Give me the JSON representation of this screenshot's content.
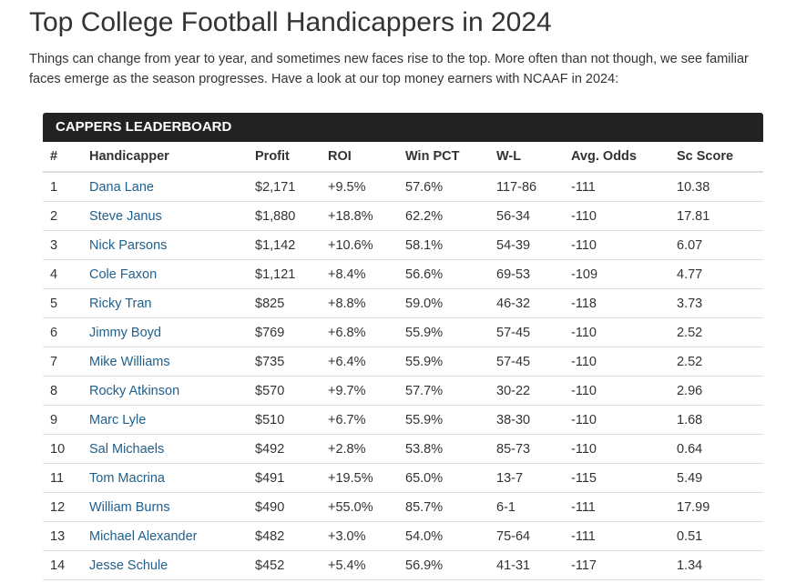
{
  "header": {
    "title": "Top College Football Handicappers in 2024",
    "intro": "Things can change from year to year, and sometimes new faces rise to the top. More often than not though, we see familiar faces emerge as the season progresses. Have a look at our top money earners with NCAAF in 2024:"
  },
  "table": {
    "title": "CAPPERS LEADERBOARD",
    "columns": [
      "#",
      "Handicapper",
      "Profit",
      "ROI",
      "Win PCT",
      "W-L",
      "Avg. Odds",
      "Sc Score"
    ],
    "rows": [
      [
        "1",
        "Dana Lane",
        "$2,171",
        "+9.5%",
        "57.6%",
        "117-86",
        "-111",
        "10.38"
      ],
      [
        "2",
        "Steve Janus",
        "$1,880",
        "+18.8%",
        "62.2%",
        "56-34",
        "-110",
        "17.81"
      ],
      [
        "3",
        "Nick Parsons",
        "$1,142",
        "+10.6%",
        "58.1%",
        "54-39",
        "-110",
        "6.07"
      ],
      [
        "4",
        "Cole Faxon",
        "$1,121",
        "+8.4%",
        "56.6%",
        "69-53",
        "-109",
        "4.77"
      ],
      [
        "5",
        "Ricky Tran",
        "$825",
        "+8.8%",
        "59.0%",
        "46-32",
        "-118",
        "3.73"
      ],
      [
        "6",
        "Jimmy Boyd",
        "$769",
        "+6.8%",
        "55.9%",
        "57-45",
        "-110",
        "2.52"
      ],
      [
        "7",
        "Mike Williams",
        "$735",
        "+6.4%",
        "55.9%",
        "57-45",
        "-110",
        "2.52"
      ],
      [
        "8",
        "Rocky Atkinson",
        "$570",
        "+9.7%",
        "57.7%",
        "30-22",
        "-110",
        "2.96"
      ],
      [
        "9",
        "Marc Lyle",
        "$510",
        "+6.7%",
        "55.9%",
        "38-30",
        "-110",
        "1.68"
      ],
      [
        "10",
        "Sal Michaels",
        "$492",
        "+2.8%",
        "53.8%",
        "85-73",
        "-110",
        "0.64"
      ],
      [
        "11",
        "Tom Macrina",
        "$491",
        "+19.5%",
        "65.0%",
        "13-7",
        "-115",
        "5.49"
      ],
      [
        "12",
        "William Burns",
        "$490",
        "+55.0%",
        "85.7%",
        "6-1",
        "-111",
        "17.99"
      ],
      [
        "13",
        "Michael Alexander",
        "$482",
        "+3.0%",
        "54.0%",
        "75-64",
        "-111",
        "0.51"
      ],
      [
        "14",
        "Jesse Schule",
        "$452",
        "+5.4%",
        "56.9%",
        "41-31",
        "-117",
        "1.34"
      ]
    ]
  }
}
